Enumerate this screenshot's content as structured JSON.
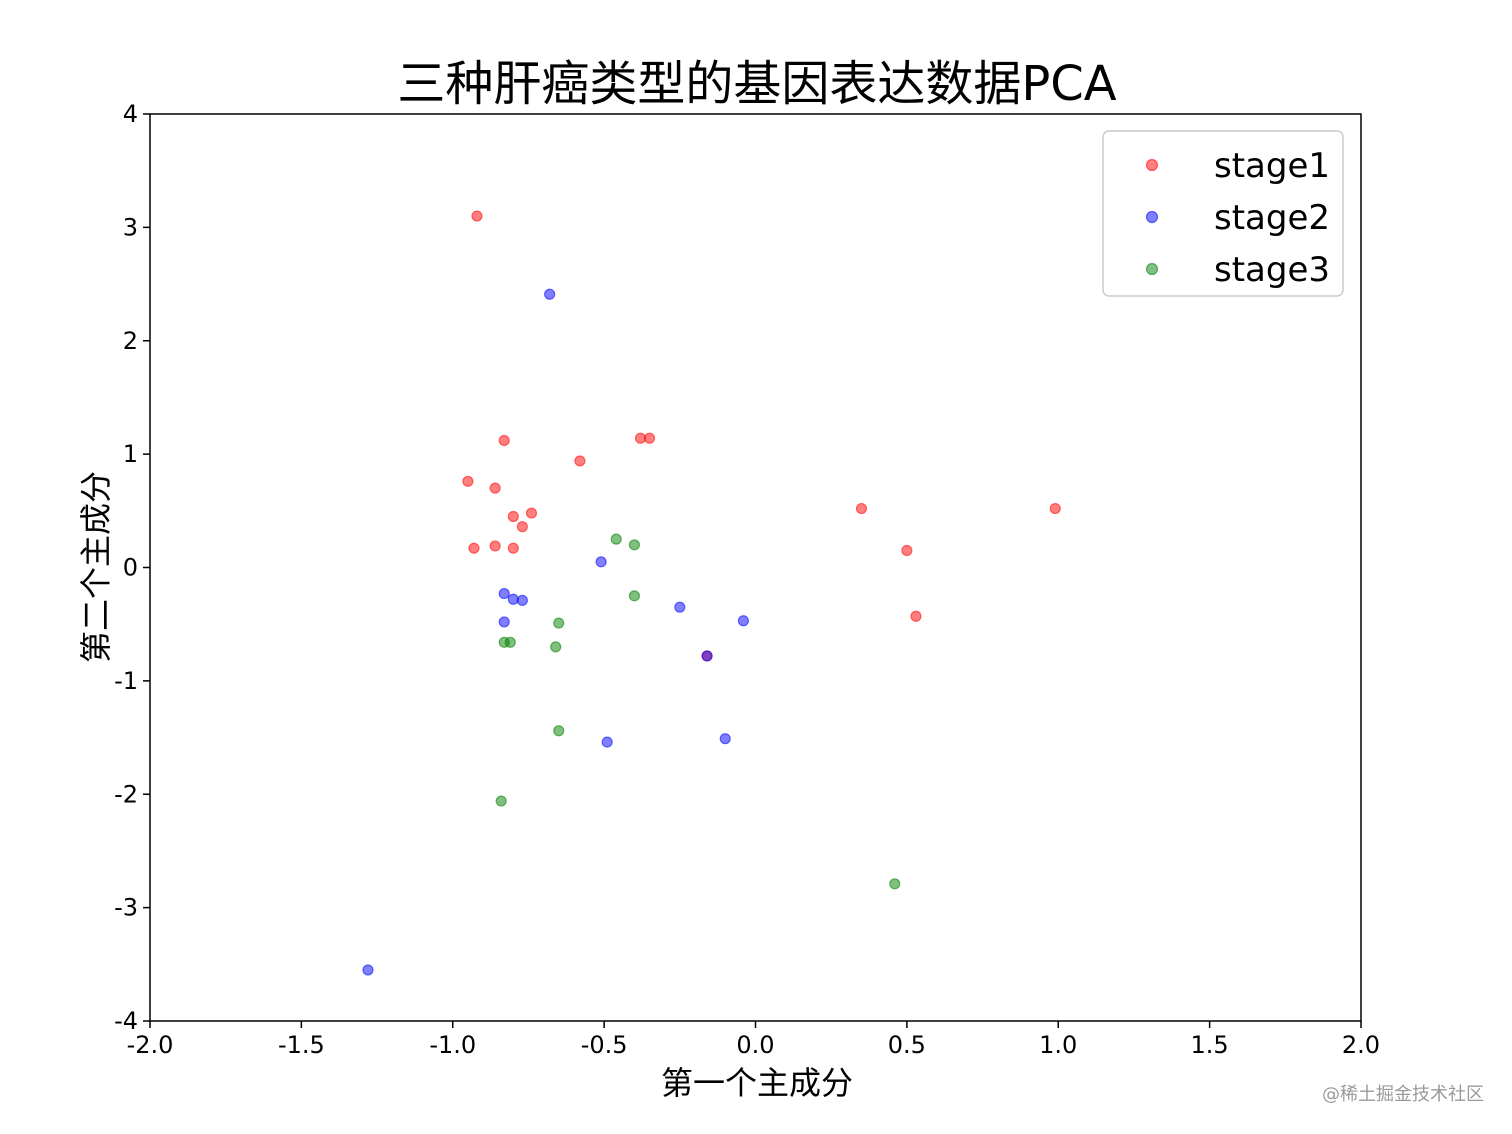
{
  "chart_data": {
    "type": "scatter",
    "title": "三种肝癌类型的基因表达数据PCA",
    "xlabel": "第一个主成分",
    "ylabel": "第二个主成分",
    "xlim": [
      -2.0,
      2.0
    ],
    "ylim": [
      -4,
      4
    ],
    "xticks": [
      "-2.0",
      "-1.5",
      "-1.0",
      "-0.5",
      "0.0",
      "0.5",
      "1.0",
      "1.5",
      "2.0"
    ],
    "yticks": [
      "-4",
      "-3",
      "-2",
      "-1",
      "0",
      "1",
      "2",
      "3",
      "4"
    ],
    "xtick_values": [
      -2.0,
      -1.5,
      -1.0,
      -0.5,
      0.0,
      0.5,
      1.0,
      1.5,
      2.0
    ],
    "ytick_values": [
      -4,
      -3,
      -2,
      -1,
      0,
      1,
      2,
      3,
      4
    ],
    "legend_position": "top-right",
    "grid": false,
    "series": [
      {
        "name": "stage1",
        "color": "#ff0000",
        "points": [
          [
            -0.92,
            3.1
          ],
          [
            -0.83,
            1.12
          ],
          [
            -0.38,
            1.14
          ],
          [
            -0.35,
            1.14
          ],
          [
            -0.58,
            0.94
          ],
          [
            -0.95,
            0.76
          ],
          [
            -0.86,
            0.7
          ],
          [
            -0.74,
            0.48
          ],
          [
            -0.8,
            0.45
          ],
          [
            -0.77,
            0.36
          ],
          [
            -0.93,
            0.17
          ],
          [
            -0.86,
            0.19
          ],
          [
            -0.8,
            0.17
          ],
          [
            0.35,
            0.52
          ],
          [
            0.99,
            0.52
          ],
          [
            0.5,
            0.15
          ],
          [
            0.53,
            -0.43
          ],
          [
            -0.16,
            -0.78
          ]
        ]
      },
      {
        "name": "stage2",
        "color": "#0000ff",
        "points": [
          [
            -0.68,
            2.41
          ],
          [
            -0.51,
            0.05
          ],
          [
            -0.83,
            -0.23
          ],
          [
            -0.8,
            -0.28
          ],
          [
            -0.77,
            -0.29
          ],
          [
            -0.83,
            -0.48
          ],
          [
            -0.25,
            -0.35
          ],
          [
            -0.04,
            -0.47
          ],
          [
            -0.16,
            -0.78
          ],
          [
            -0.49,
            -1.54
          ],
          [
            -0.1,
            -1.51
          ],
          [
            -1.28,
            -3.55
          ]
        ]
      },
      {
        "name": "stage3",
        "color": "#008000",
        "points": [
          [
            -0.46,
            0.25
          ],
          [
            -0.4,
            0.2
          ],
          [
            -0.4,
            -0.25
          ],
          [
            -0.65,
            -0.49
          ],
          [
            -0.83,
            -0.66
          ],
          [
            -0.81,
            -0.66
          ],
          [
            -0.66,
            -0.7
          ],
          [
            -0.65,
            -1.44
          ],
          [
            -0.84,
            -2.06
          ],
          [
            0.46,
            -2.79
          ]
        ]
      }
    ]
  },
  "watermark": "@稀土掘金技术社区"
}
